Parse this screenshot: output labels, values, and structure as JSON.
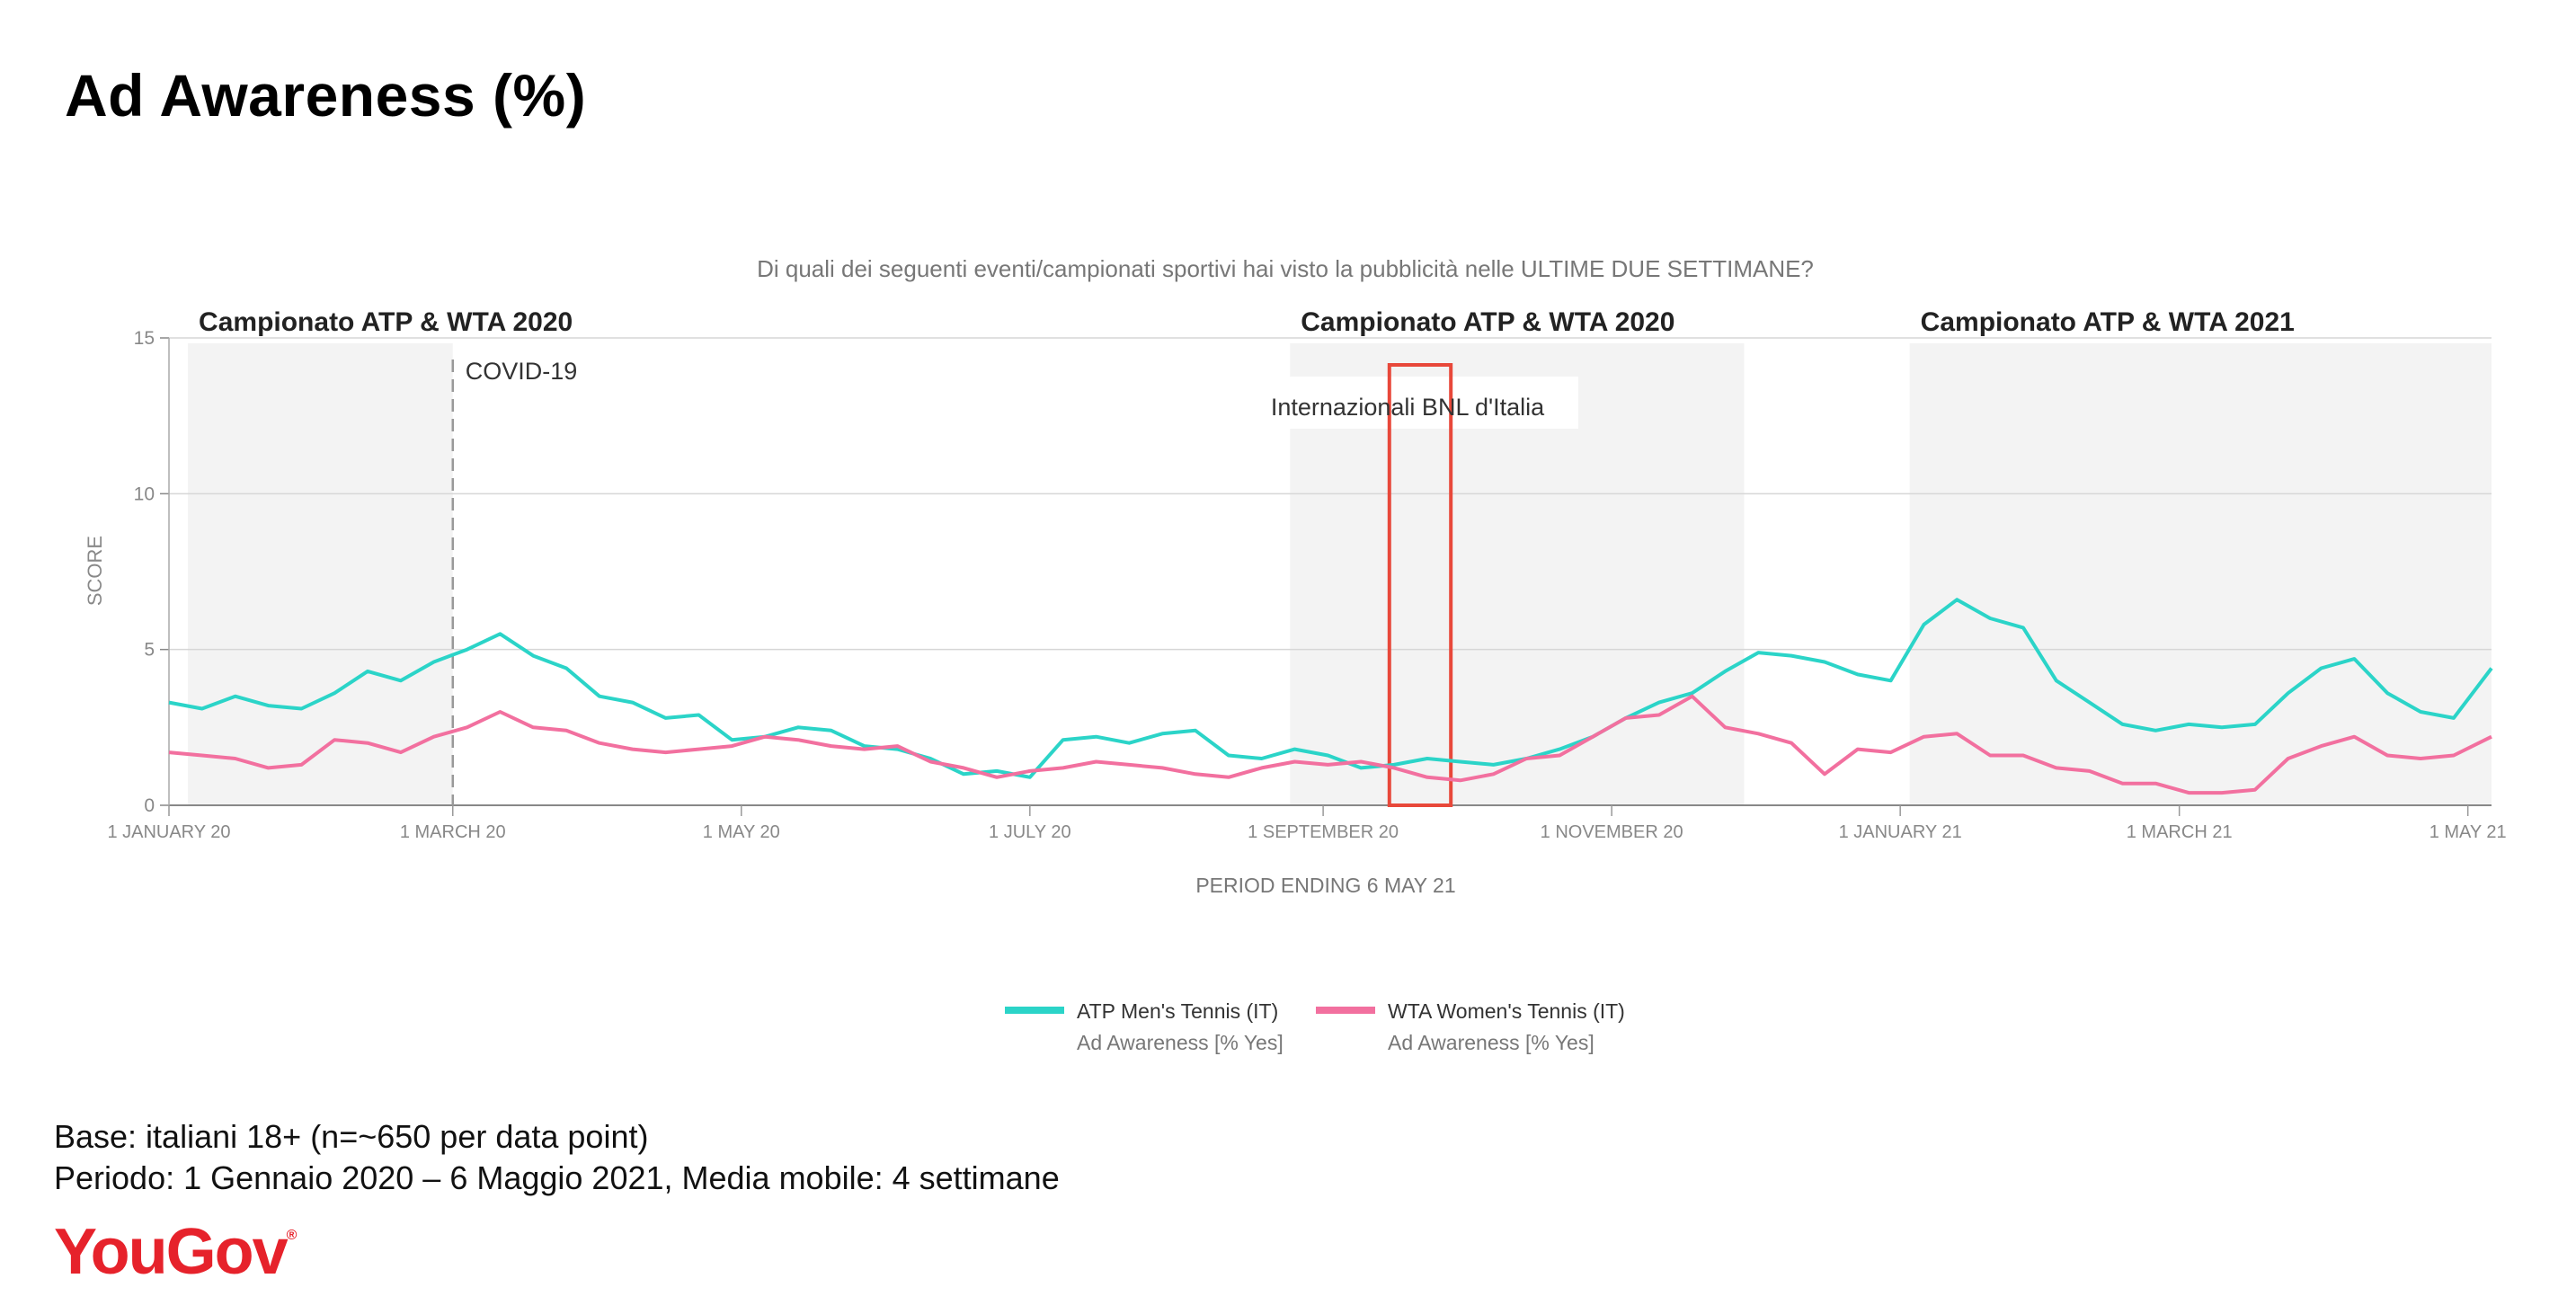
{
  "title": "Ad Awareness (%)",
  "footer": {
    "base": "Base: italiani 18+ (n=~650 per data point)",
    "period": "Periodo: 1 Gennaio 2020 – 6 Maggio 2021, Media mobile: 4 settimane"
  },
  "logo": {
    "text": "YouGov",
    "mark": "®"
  },
  "colors": {
    "atp": "#2bd4c8",
    "wta": "#f2709f",
    "highlight": "#e8483a",
    "shade": "#f3f3f3"
  },
  "chart_data": {
    "type": "line",
    "subtitle": "Di quali dei seguenti eventi/campionati sportivi hai visto la pubblicità nelle ULTIME DUE SETTIMANE?",
    "xlabel": "PERIOD ENDING 6 MAY 21",
    "ylabel": "SCORE",
    "ylim": [
      0,
      15
    ],
    "yticks": [
      0,
      5,
      10,
      15
    ],
    "xlim": [
      "2020-01-01",
      "2021-05-06"
    ],
    "xticks": [
      {
        "date": "2020-01-01",
        "label": "1 JANUARY 20"
      },
      {
        "date": "2020-03-01",
        "label": "1 MARCH 20"
      },
      {
        "date": "2020-05-01",
        "label": "1 MAY 20"
      },
      {
        "date": "2020-07-01",
        "label": "1 JULY 20"
      },
      {
        "date": "2020-09-01",
        "label": "1 SEPTEMBER 20"
      },
      {
        "date": "2020-11-01",
        "label": "1 NOVEMBER 20"
      },
      {
        "date": "2021-01-01",
        "label": "1 JANUARY 21"
      },
      {
        "date": "2021-03-01",
        "label": "1 MARCH 21"
      },
      {
        "date": "2021-05-01",
        "label": "1 MAY 21"
      }
    ],
    "grid": true,
    "legend": "bottom",
    "periods": [
      {
        "label": "Campionato ATP & WTA 2020",
        "start": "2020-01-05",
        "end": "2020-03-01"
      },
      {
        "label": "Campionato ATP & WTA 2020",
        "start": "2020-08-25",
        "end": "2020-11-29"
      },
      {
        "label": "Campionato ATP & WTA 2021",
        "start": "2021-01-03",
        "end": "2021-05-06"
      }
    ],
    "annotations": [
      {
        "type": "vline",
        "date": "2020-03-01",
        "label": "COVID-19"
      },
      {
        "type": "box",
        "start": "2020-09-15",
        "end": "2020-09-28",
        "label": "Internazionali BNL d'Italia"
      }
    ],
    "series": [
      {
        "name": "ATP Men's Tennis (IT)",
        "sublabel": "Ad Awareness [% Yes]",
        "points": [
          [
            "2020-01-01",
            3.3
          ],
          [
            "2020-01-08",
            3.1
          ],
          [
            "2020-01-15",
            3.5
          ],
          [
            "2020-01-22",
            3.2
          ],
          [
            "2020-01-29",
            3.1
          ],
          [
            "2020-02-05",
            3.6
          ],
          [
            "2020-02-12",
            4.3
          ],
          [
            "2020-02-19",
            4.0
          ],
          [
            "2020-02-26",
            4.6
          ],
          [
            "2020-03-04",
            5.0
          ],
          [
            "2020-03-11",
            5.5
          ],
          [
            "2020-03-18",
            4.8
          ],
          [
            "2020-03-25",
            4.4
          ],
          [
            "2020-04-01",
            3.5
          ],
          [
            "2020-04-08",
            3.3
          ],
          [
            "2020-04-15",
            2.8
          ],
          [
            "2020-04-22",
            2.9
          ],
          [
            "2020-04-29",
            2.1
          ],
          [
            "2020-05-06",
            2.2
          ],
          [
            "2020-05-13",
            2.5
          ],
          [
            "2020-05-20",
            2.4
          ],
          [
            "2020-05-27",
            1.9
          ],
          [
            "2020-06-03",
            1.8
          ],
          [
            "2020-06-10",
            1.5
          ],
          [
            "2020-06-17",
            1.0
          ],
          [
            "2020-06-24",
            1.1
          ],
          [
            "2020-07-01",
            0.9
          ],
          [
            "2020-07-08",
            2.1
          ],
          [
            "2020-07-15",
            2.2
          ],
          [
            "2020-07-22",
            2.0
          ],
          [
            "2020-07-29",
            2.3
          ],
          [
            "2020-08-05",
            2.4
          ],
          [
            "2020-08-12",
            1.6
          ],
          [
            "2020-08-19",
            1.5
          ],
          [
            "2020-08-26",
            1.8
          ],
          [
            "2020-09-02",
            1.6
          ],
          [
            "2020-09-09",
            1.2
          ],
          [
            "2020-09-16",
            1.3
          ],
          [
            "2020-09-23",
            1.5
          ],
          [
            "2020-09-30",
            1.4
          ],
          [
            "2020-10-07",
            1.3
          ],
          [
            "2020-10-14",
            1.5
          ],
          [
            "2020-10-21",
            1.8
          ],
          [
            "2020-10-28",
            2.2
          ],
          [
            "2020-11-04",
            2.8
          ],
          [
            "2020-11-11",
            3.3
          ],
          [
            "2020-11-18",
            3.6
          ],
          [
            "2020-11-25",
            4.3
          ],
          [
            "2020-12-02",
            4.9
          ],
          [
            "2020-12-09",
            4.8
          ],
          [
            "2020-12-16",
            4.6
          ],
          [
            "2020-12-23",
            4.2
          ],
          [
            "2020-12-30",
            4.0
          ],
          [
            "2021-01-06",
            5.8
          ],
          [
            "2021-01-13",
            6.6
          ],
          [
            "2021-01-20",
            6.0
          ],
          [
            "2021-01-27",
            5.7
          ],
          [
            "2021-02-03",
            4.0
          ],
          [
            "2021-02-10",
            3.3
          ],
          [
            "2021-02-17",
            2.6
          ],
          [
            "2021-02-24",
            2.4
          ],
          [
            "2021-03-03",
            2.6
          ],
          [
            "2021-03-10",
            2.5
          ],
          [
            "2021-03-17",
            2.6
          ],
          [
            "2021-03-24",
            3.6
          ],
          [
            "2021-03-31",
            4.4
          ],
          [
            "2021-04-07",
            4.7
          ],
          [
            "2021-04-14",
            3.6
          ],
          [
            "2021-04-21",
            3.0
          ],
          [
            "2021-04-28",
            2.8
          ],
          [
            "2021-05-06",
            4.4
          ]
        ]
      },
      {
        "name": "WTA Women's Tennis (IT)",
        "sublabel": "Ad Awareness [% Yes]",
        "points": [
          [
            "2020-01-01",
            1.7
          ],
          [
            "2020-01-08",
            1.6
          ],
          [
            "2020-01-15",
            1.5
          ],
          [
            "2020-01-22",
            1.2
          ],
          [
            "2020-01-29",
            1.3
          ],
          [
            "2020-02-05",
            2.1
          ],
          [
            "2020-02-12",
            2.0
          ],
          [
            "2020-02-19",
            1.7
          ],
          [
            "2020-02-26",
            2.2
          ],
          [
            "2020-03-04",
            2.5
          ],
          [
            "2020-03-11",
            3.0
          ],
          [
            "2020-03-18",
            2.5
          ],
          [
            "2020-03-25",
            2.4
          ],
          [
            "2020-04-01",
            2.0
          ],
          [
            "2020-04-08",
            1.8
          ],
          [
            "2020-04-15",
            1.7
          ],
          [
            "2020-04-22",
            1.8
          ],
          [
            "2020-04-29",
            1.9
          ],
          [
            "2020-05-06",
            2.2
          ],
          [
            "2020-05-13",
            2.1
          ],
          [
            "2020-05-20",
            1.9
          ],
          [
            "2020-05-27",
            1.8
          ],
          [
            "2020-06-03",
            1.9
          ],
          [
            "2020-06-10",
            1.4
          ],
          [
            "2020-06-17",
            1.2
          ],
          [
            "2020-06-24",
            0.9
          ],
          [
            "2020-07-01",
            1.1
          ],
          [
            "2020-07-08",
            1.2
          ],
          [
            "2020-07-15",
            1.4
          ],
          [
            "2020-07-22",
            1.3
          ],
          [
            "2020-07-29",
            1.2
          ],
          [
            "2020-08-05",
            1.0
          ],
          [
            "2020-08-12",
            0.9
          ],
          [
            "2020-08-19",
            1.2
          ],
          [
            "2020-08-26",
            1.4
          ],
          [
            "2020-09-02",
            1.3
          ],
          [
            "2020-09-09",
            1.4
          ],
          [
            "2020-09-16",
            1.2
          ],
          [
            "2020-09-23",
            0.9
          ],
          [
            "2020-09-30",
            0.8
          ],
          [
            "2020-10-07",
            1.0
          ],
          [
            "2020-10-14",
            1.5
          ],
          [
            "2020-10-21",
            1.6
          ],
          [
            "2020-10-28",
            2.2
          ],
          [
            "2020-11-04",
            2.8
          ],
          [
            "2020-11-11",
            2.9
          ],
          [
            "2020-11-18",
            3.5
          ],
          [
            "2020-11-25",
            2.5
          ],
          [
            "2020-12-02",
            2.3
          ],
          [
            "2020-12-09",
            2.0
          ],
          [
            "2020-12-16",
            1.0
          ],
          [
            "2020-12-23",
            1.8
          ],
          [
            "2020-12-30",
            1.7
          ],
          [
            "2021-01-06",
            2.2
          ],
          [
            "2021-01-13",
            2.3
          ],
          [
            "2021-01-20",
            1.6
          ],
          [
            "2021-01-27",
            1.6
          ],
          [
            "2021-02-03",
            1.2
          ],
          [
            "2021-02-10",
            1.1
          ],
          [
            "2021-02-17",
            0.7
          ],
          [
            "2021-02-24",
            0.7
          ],
          [
            "2021-03-03",
            0.4
          ],
          [
            "2021-03-10",
            0.4
          ],
          [
            "2021-03-17",
            0.5
          ],
          [
            "2021-03-24",
            1.5
          ],
          [
            "2021-03-31",
            1.9
          ],
          [
            "2021-04-07",
            2.2
          ],
          [
            "2021-04-14",
            1.6
          ],
          [
            "2021-04-21",
            1.5
          ],
          [
            "2021-04-28",
            1.6
          ],
          [
            "2021-05-06",
            2.2
          ]
        ]
      }
    ]
  }
}
